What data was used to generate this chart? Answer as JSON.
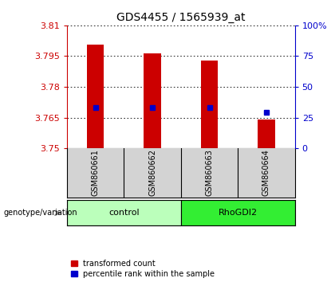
{
  "title": "GDS4455 / 1565939_at",
  "samples": [
    "GSM860661",
    "GSM860662",
    "GSM860663",
    "GSM860664"
  ],
  "ylim_left": [
    3.75,
    3.81
  ],
  "yticks_left": [
    3.75,
    3.765,
    3.78,
    3.795,
    3.81
  ],
  "yticks_right": [
    0,
    25,
    50,
    75,
    100
  ],
  "transformed_counts": [
    3.8005,
    3.7965,
    3.793,
    3.764
  ],
  "percentile_ranks": [
    33,
    33,
    33,
    29
  ],
  "bar_bottom": 3.75,
  "bar_width": 0.3,
  "bar_color": "#cc0000",
  "percentile_color": "#0000cc",
  "control_color": "#bbffbb",
  "rhogdi2_color": "#33ee33",
  "left_axis_color": "#cc0000",
  "right_axis_color": "#0000cc",
  "background_color": "#ffffff",
  "plot_bg_color": "#ffffff",
  "sample_bg_color": "#d3d3d3",
  "legend_red_label": "transformed count",
  "legend_blue_label": "percentile rank within the sample",
  "genotype_label": "genotype/variation",
  "groups": [
    {
      "name": "control",
      "start": 0,
      "end": 1
    },
    {
      "name": "RhoGDI2",
      "start": 2,
      "end": 3
    }
  ]
}
